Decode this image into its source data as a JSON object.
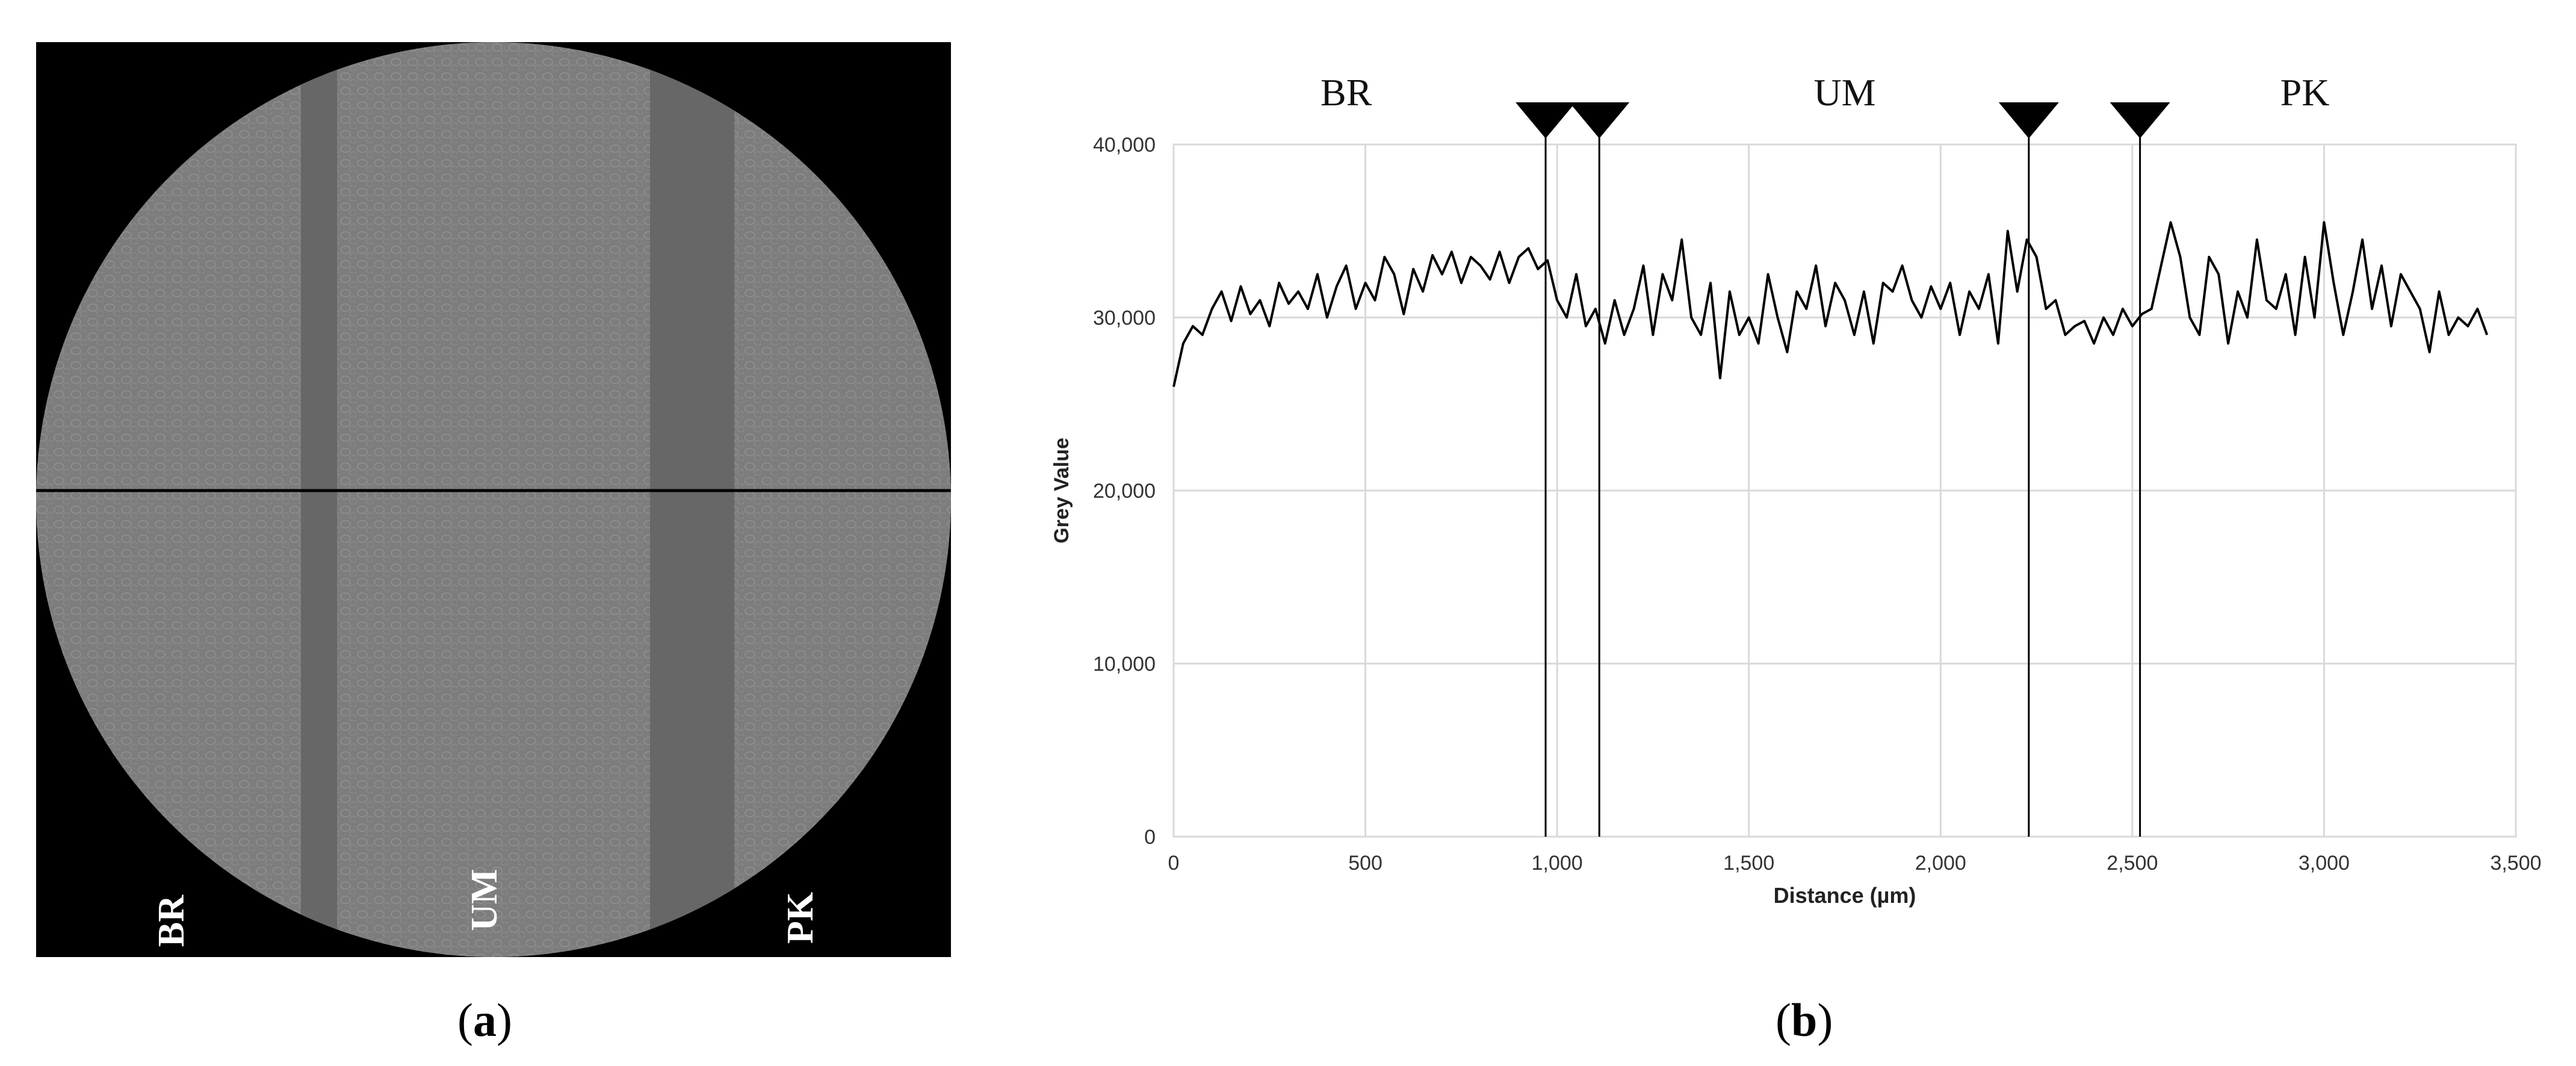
{
  "panel_a": {
    "caption_letter": "a",
    "region_labels": [
      "BR",
      "UM",
      "PK"
    ],
    "colors": {
      "background": "#000000",
      "tissue": "#7d7d7d",
      "band": "#676767",
      "line": "#000000"
    }
  },
  "panel_b": {
    "caption_letter": "b"
  },
  "chart_data": {
    "type": "line",
    "title": "",
    "xlabel": "Distance (µm)",
    "ylabel": "Grey Value",
    "xlim": [
      0,
      3500
    ],
    "ylim": [
      0,
      40000
    ],
    "x_ticks": [
      0,
      500,
      1000,
      1500,
      2000,
      2500,
      3000,
      3500
    ],
    "x_tick_labels": [
      "0",
      "500",
      "1,000",
      "1,500",
      "2,000",
      "2,500",
      "3,000",
      "3,500"
    ],
    "y_ticks": [
      0,
      10000,
      20000,
      30000,
      40000
    ],
    "y_tick_labels": [
      "0",
      "10,000",
      "20,000",
      "30,000",
      "40,000"
    ],
    "grid": true,
    "legend": "none",
    "line_color": "#000000",
    "region_labels": [
      {
        "text": "BR",
        "x": 450
      },
      {
        "text": "UM",
        "x": 1750
      },
      {
        "text": "PK",
        "x": 2950
      }
    ],
    "boundary_markers_x": [
      970,
      1110,
      2230,
      2520
    ],
    "series": [
      {
        "x": [
          0,
          25,
          50,
          75,
          100,
          125,
          150,
          175,
          200,
          225,
          250,
          275,
          300,
          325,
          350,
          375,
          400,
          425,
          450,
          475,
          500,
          525,
          550,
          575,
          600,
          625,
          650,
          675,
          700,
          725,
          750,
          775,
          800,
          825,
          850,
          875,
          900,
          925,
          950,
          975,
          1000,
          1025,
          1050,
          1075,
          1100,
          1125,
          1150,
          1175,
          1200,
          1225,
          1250,
          1275,
          1300,
          1325,
          1350,
          1375,
          1400,
          1425,
          1450,
          1475,
          1500,
          1525,
          1550,
          1575,
          1600,
          1625,
          1650,
          1675,
          1700,
          1725,
          1750,
          1775,
          1800,
          1825,
          1850,
          1875,
          1900,
          1925,
          1950,
          1975,
          2000,
          2025,
          2050,
          2075,
          2100,
          2125,
          2150,
          2175,
          2200,
          2225,
          2250,
          2275,
          2300,
          2325,
          2350,
          2375,
          2400,
          2425,
          2450,
          2475,
          2500,
          2525,
          2550,
          2575,
          2600,
          2625,
          2650,
          2675,
          2700,
          2725,
          2750,
          2775,
          2800,
          2825,
          2850,
          2875,
          2900,
          2925,
          2950,
          2975,
          3000,
          3025,
          3050,
          3075,
          3100,
          3125,
          3150,
          3175,
          3200,
          3225,
          3250,
          3275,
          3300,
          3325,
          3350,
          3375,
          3400,
          3425
        ],
        "values": [
          26000,
          28500,
          29500,
          29000,
          30500,
          31500,
          29800,
          31800,
          30200,
          31000,
          29500,
          32000,
          30800,
          31500,
          30500,
          32500,
          30000,
          31800,
          33000,
          30500,
          32000,
          31000,
          33500,
          32500,
          30200,
          32800,
          31500,
          33600,
          32500,
          33800,
          32000,
          33500,
          33000,
          32200,
          33800,
          32000,
          33500,
          34000,
          32800,
          33300,
          31000,
          30000,
          32500,
          29500,
          30500,
          28500,
          31000,
          29000,
          30500,
          33000,
          29000,
          32500,
          31000,
          34500,
          30000,
          29000,
          32000,
          26500,
          31500,
          29000,
          30000,
          28500,
          32500,
          30000,
          28000,
          31500,
          30500,
          33000,
          29500,
          32000,
          31000,
          29000,
          31500,
          28500,
          32000,
          31500,
          33000,
          31000,
          30000,
          31800,
          30500,
          32000,
          29000,
          31500,
          30500,
          32500,
          28500,
          35000,
          31500,
          34500,
          33500,
          30500,
          31000,
          29000,
          29500,
          29800,
          28500,
          30000,
          29000,
          30500,
          29500,
          30200,
          30500,
          33000,
          35500,
          33500,
          30000,
          29000,
          33500,
          32500,
          28500,
          31500,
          30000,
          34500,
          31000,
          30500,
          32500,
          29000,
          33500,
          30000,
          35500,
          32000,
          29000,
          31500,
          34500,
          30500,
          33000,
          29500,
          32500,
          31500,
          30500,
          28000,
          31500,
          29000,
          30000,
          29500,
          30500,
          29000
        ]
      }
    ]
  }
}
